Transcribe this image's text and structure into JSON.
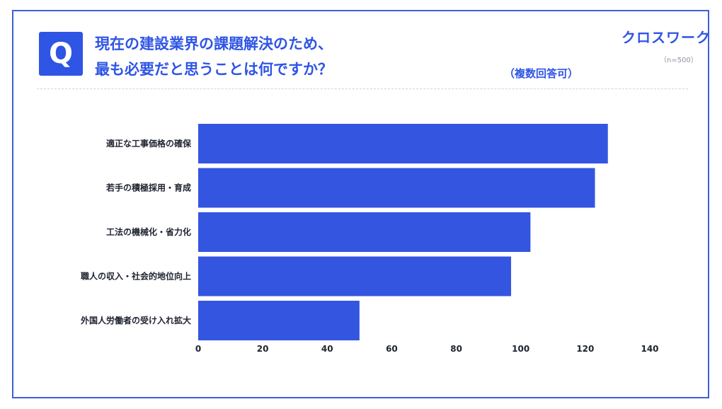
{
  "header": {
    "badge": "Q",
    "title_line1": "現在の建設業界の課題解決のため、",
    "title_line2": "最も必要だと思うことは何ですか？",
    "brand": "クロスワーク",
    "sample_size": "（n=500）",
    "note": "（複数回答可）"
  },
  "colors": {
    "accent": "#2f55e4",
    "bar": "#3355e0",
    "border": "#3f5fd6"
  },
  "chart_data": {
    "type": "bar",
    "orientation": "horizontal",
    "categories": [
      "適正な工事価格の確保",
      "若手の積極採用・育成",
      "工法の機械化・省力化",
      "職人の収入・社会的地位向上",
      "外国人労働者の受け入れ拡大"
    ],
    "values": [
      127,
      123,
      103,
      97,
      50
    ],
    "xlim": [
      0,
      140
    ],
    "ticks": [
      "0",
      "20",
      "40",
      "60",
      "80",
      "100",
      "120",
      "140"
    ],
    "title": "",
    "xlabel": "",
    "ylabel": "",
    "grid": false,
    "legend": "none"
  }
}
